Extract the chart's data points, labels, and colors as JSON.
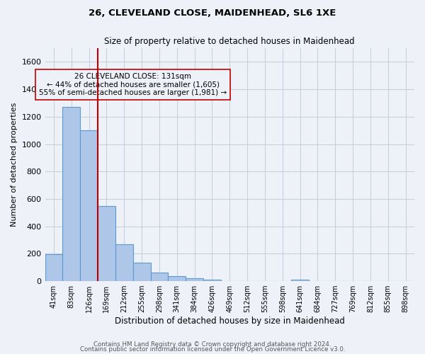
{
  "title1": "26, CLEVELAND CLOSE, MAIDENHEAD, SL6 1XE",
  "title2": "Size of property relative to detached houses in Maidenhead",
  "xlabel": "Distribution of detached houses by size in Maidenhead",
  "ylabel": "Number of detached properties",
  "footer1": "Contains HM Land Registry data © Crown copyright and database right 2024.",
  "footer2": "Contains public sector information licensed under the Open Government Licence v3.0.",
  "bin_labels": [
    "41sqm",
    "83sqm",
    "126sqm",
    "169sqm",
    "212sqm",
    "255sqm",
    "298sqm",
    "341sqm",
    "384sqm",
    "426sqm",
    "469sqm",
    "512sqm",
    "555sqm",
    "598sqm",
    "641sqm",
    "684sqm",
    "727sqm",
    "769sqm",
    "812sqm",
    "855sqm",
    "898sqm"
  ],
  "bar_values": [
    197,
    1270,
    1100,
    550,
    270,
    135,
    62,
    35,
    20,
    13,
    0,
    0,
    0,
    0,
    13,
    0,
    0,
    0,
    0,
    0,
    0
  ],
  "bar_color": "#aec6e8",
  "bar_edge_color": "#5b9bd5",
  "grid_color": "#c8d0e0",
  "bg_color": "#eef2f8",
  "vline_x_index": 2,
  "vline_color": "#c00000",
  "annotation_text": "26 CLEVELAND CLOSE: 131sqm\n← 44% of detached houses are smaller (1,605)\n55% of semi-detached houses are larger (1,981) →",
  "ylim": [
    0,
    1700
  ],
  "yticks": [
    0,
    200,
    400,
    600,
    800,
    1000,
    1200,
    1400,
    1600
  ]
}
